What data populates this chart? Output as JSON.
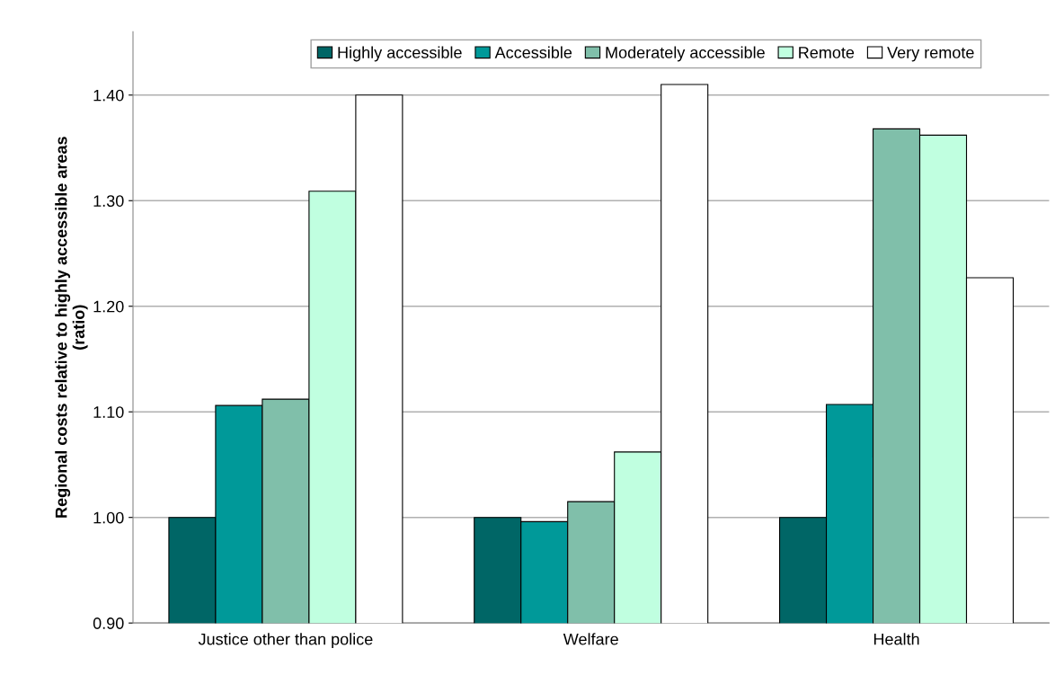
{
  "chart_data": {
    "type": "bar",
    "ylabel": "Regional costs relative to highly accessible areas\n(ratio)",
    "categories": [
      "Justice other than police",
      "Welfare",
      "Health"
    ],
    "series": [
      {
        "name": "Highly accessible",
        "color": "#006666",
        "values": [
          1.0,
          1.0,
          1.0
        ]
      },
      {
        "name": "Accessible",
        "color": "#009999",
        "values": [
          1.106,
          0.996,
          1.107
        ]
      },
      {
        "name": "Moderately accessible",
        "color": "#80bfaa",
        "values": [
          1.112,
          1.015,
          1.368
        ]
      },
      {
        "name": "Remote",
        "color": "#c0ffe0",
        "values": [
          1.309,
          1.062,
          1.362
        ]
      },
      {
        "name": "Very remote",
        "color": "#ffffff",
        "values": [
          1.4,
          1.41,
          1.227
        ]
      }
    ],
    "ylim": [
      0.9,
      1.46
    ],
    "yticks": [
      {
        "value": 0.9,
        "label": "0.90"
      },
      {
        "value": 1.0,
        "label": "1.00"
      },
      {
        "value": 1.1,
        "label": "1.10"
      },
      {
        "value": 1.2,
        "label": "1.20"
      },
      {
        "value": 1.3,
        "label": "1.30"
      },
      {
        "value": 1.4,
        "label": "1.40"
      }
    ],
    "grid": "y",
    "legend": "top"
  }
}
